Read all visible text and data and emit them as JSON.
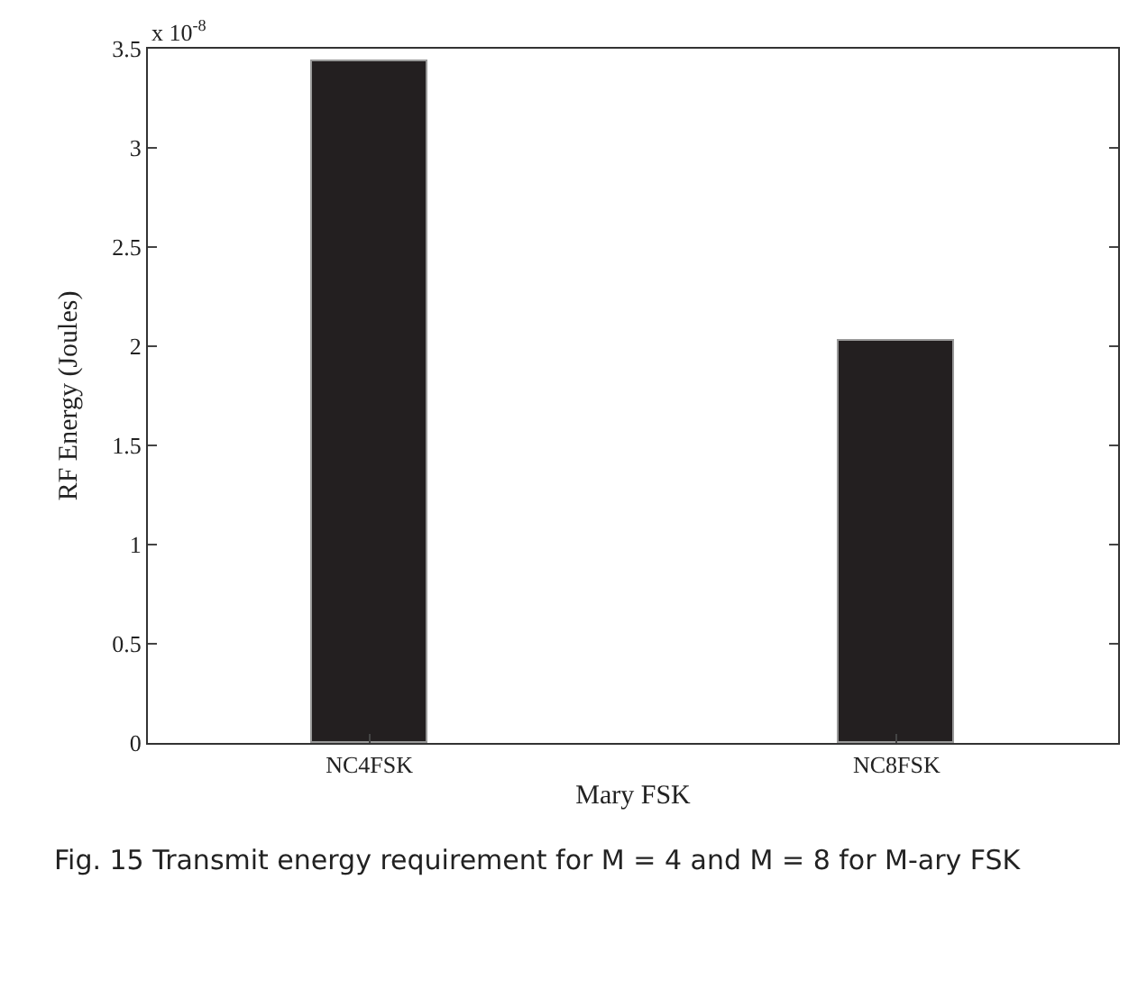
{
  "chart_data": {
    "type": "bar",
    "xlabel": "Mary FSK",
    "ylabel": "RF Energy (Joules)",
    "categories": [
      "NC4FSK",
      "NC8FSK"
    ],
    "values": [
      3.44,
      2.03
    ],
    "color": "#231f20",
    "ylim": [
      0,
      3.5
    ],
    "yticks": [
      0,
      0.5,
      1,
      1.5,
      2,
      2.5,
      3,
      3.5
    ],
    "annotations": [
      "x 10$^{-8}$",
      "Fig. 15 Transmit energy requirement for M = 4 and M = 8 for M-ary FSK"
    ]
  }
}
